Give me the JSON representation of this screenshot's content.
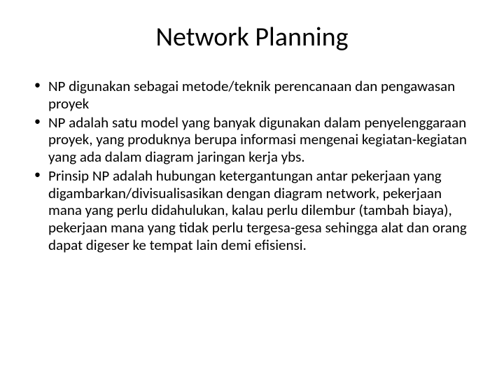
{
  "slide": {
    "title": "Network Planning",
    "bullets": [
      "NP digunakan sebagai metode/teknik perencanaan dan pengawasan proyek",
      "NP adalah satu model yang banyak digunakan dalam penyelenggaraan proyek, yang produknya berupa informasi mengenai kegiatan-kegiatan yang ada dalam diagram jaringan kerja ybs.",
      "Prinsip NP adalah hubungan ketergantungan antar pekerjaan yang digambarkan/divisualisasikan dengan diagram network, pekerjaan mana yang perlu didahulukan, kalau perlu dilembur (tambah biaya), pekerjaan mana yang tidak perlu tergesa-gesa sehingga alat dan orang dapat digeser ke tempat lain demi efisiensi."
    ]
  },
  "styling": {
    "background_color": "#ffffff",
    "text_color": "#000000",
    "title_fontsize": 38,
    "body_fontsize": 21,
    "font_family": "Calibri",
    "bullet_char": "•"
  }
}
